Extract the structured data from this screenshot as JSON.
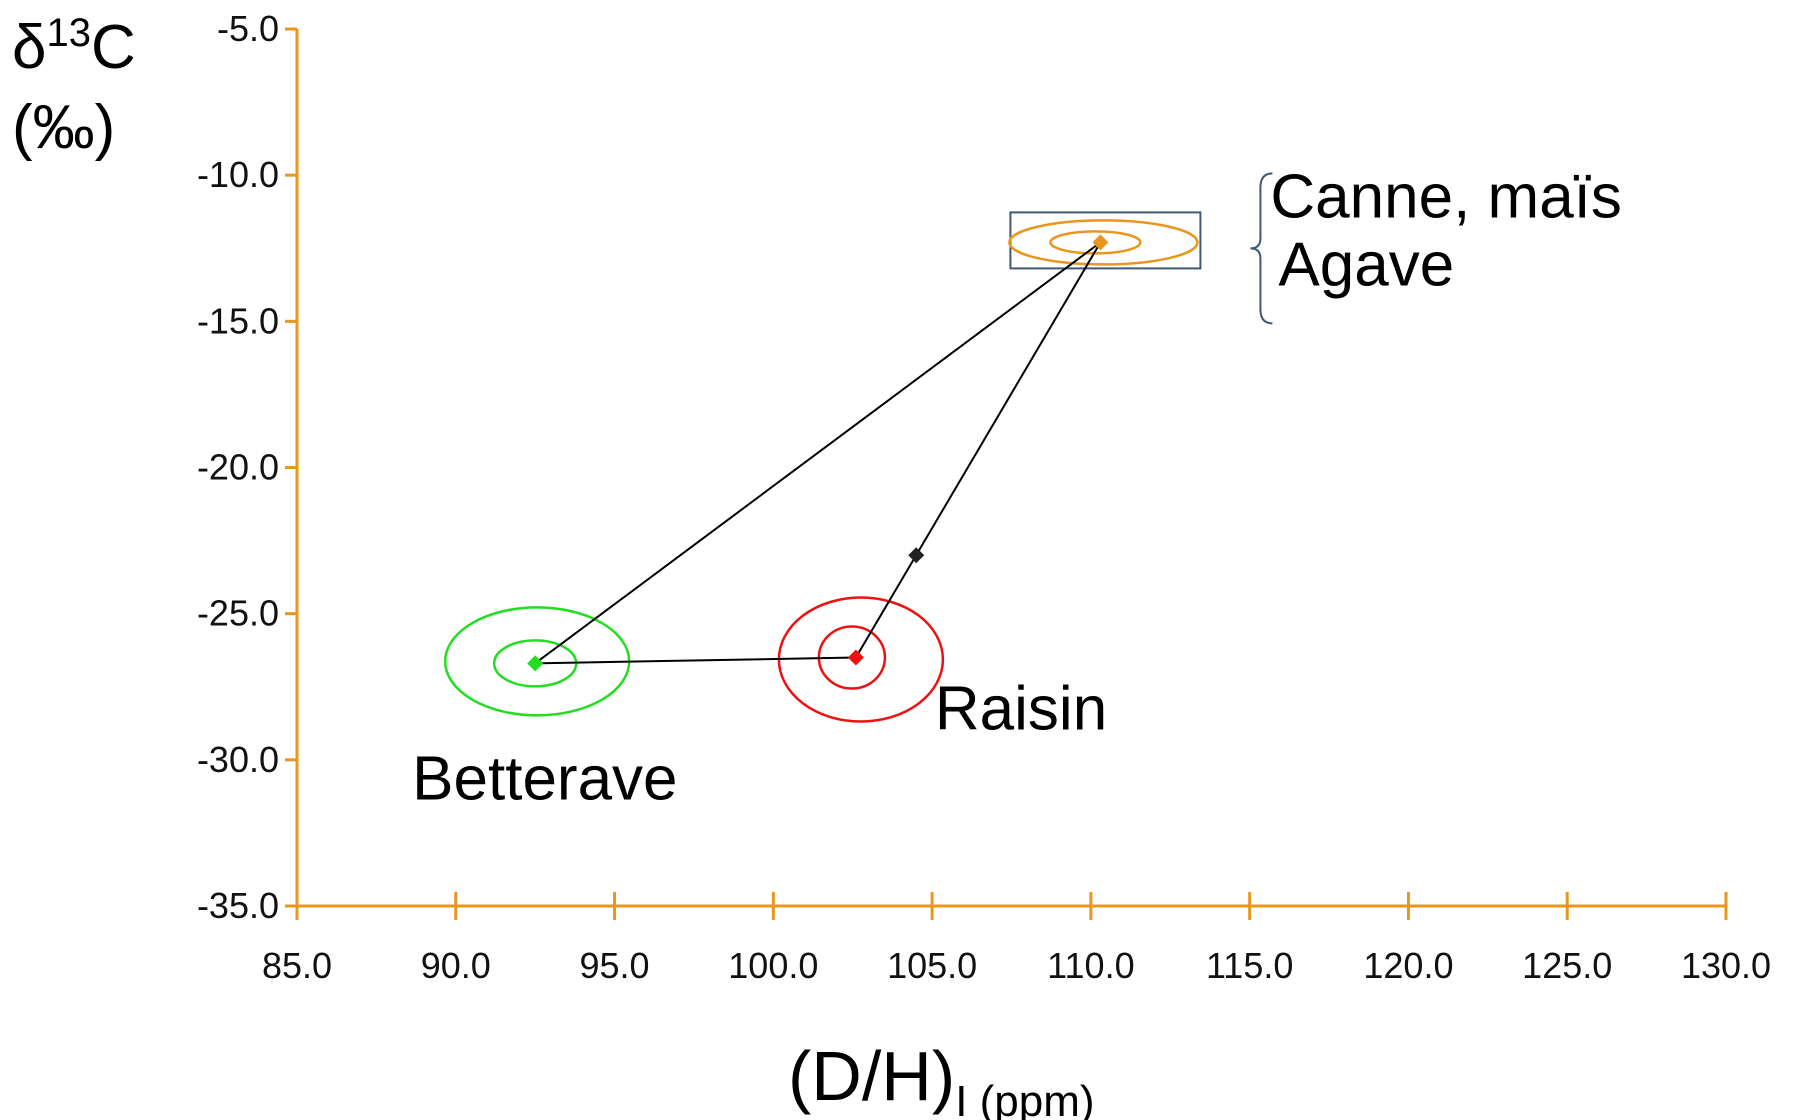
{
  "chart_data": {
    "type": "scatter",
    "title": "",
    "xlabel": "(D/H)",
    "xlabel_sub": "I (ppm)",
    "ylabel_main": "δ",
    "ylabel_sup": "13",
    "ylabel_c": "C",
    "ylabel_unit": "(‰)",
    "xlim": [
      85,
      130
    ],
    "ylim": [
      -35,
      -5
    ],
    "x_ticks": [
      85,
      90,
      95,
      100,
      105,
      110,
      115,
      120,
      125,
      130
    ],
    "x_tick_labels": [
      "85.0",
      "90.0",
      "95.0",
      "100.0",
      "105.0",
      "110.0",
      "115.0",
      "120.0",
      "125.0",
      "130.0"
    ],
    "y_ticks": [
      -5,
      -10,
      -15,
      -20,
      -25,
      -30,
      -35
    ],
    "y_tick_labels": [
      "-5.0",
      "-10.0",
      "-15.0",
      "-20.0",
      "-25.0",
      "-30.0",
      "-35.0"
    ],
    "axis_color": "#E8961E",
    "grid": false,
    "legend": "none",
    "points": [
      {
        "label": "Betterave",
        "x": 92.5,
        "y": -26.7,
        "color": "#22DD22"
      },
      {
        "label": "Raisin",
        "x": 102.6,
        "y": -26.5,
        "color": "#EE1111"
      },
      {
        "label": "Canne, maïs",
        "label2": "Agave",
        "x": 110.3,
        "y": -12.3,
        "color": "#E8961E"
      },
      {
        "label": "",
        "x": 104.5,
        "y": -23.0,
        "color": "#222222"
      }
    ],
    "lines": [
      {
        "from": "Betterave",
        "to": "Canne, maïs"
      },
      {
        "from": "Betterave",
        "to": "Raisin"
      },
      {
        "from": "Raisin",
        "to": "Canne, maïs"
      }
    ],
    "label_colors": {
      "primary": "#000000",
      "agave": "#2F4F77"
    }
  }
}
